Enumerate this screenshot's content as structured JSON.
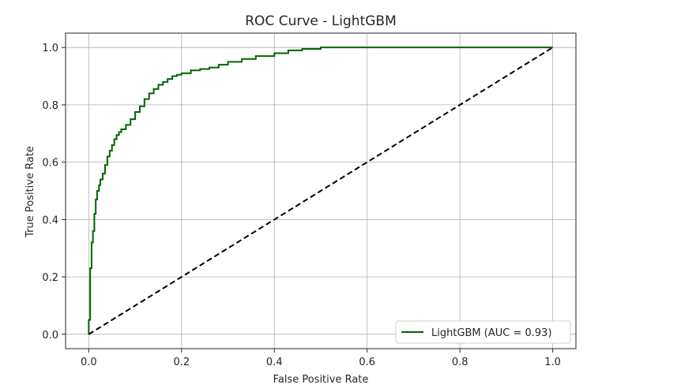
{
  "chart_data": {
    "type": "line",
    "title": "ROC Curve - LightGBM",
    "xlabel": "False Positive Rate",
    "ylabel": "True Positive Rate",
    "xlim": [
      -0.05,
      1.05
    ],
    "ylim": [
      -0.05,
      1.05
    ],
    "xticks": [
      0.0,
      0.2,
      0.4,
      0.6,
      0.8,
      1.0
    ],
    "yticks": [
      0.0,
      0.2,
      0.4,
      0.6,
      0.8,
      1.0
    ],
    "xtick_labels": [
      "0.0",
      "0.2",
      "0.4",
      "0.6",
      "0.8",
      "1.0"
    ],
    "ytick_labels": [
      "0.0",
      "0.2",
      "0.4",
      "0.6",
      "0.8",
      "1.0"
    ],
    "grid": true,
    "legend_position": "lower-right",
    "series": [
      {
        "name": "LightGBM (AUC = 0.93)",
        "color": "#006400",
        "style": "solid",
        "x": [
          0.0,
          0.0,
          0.003,
          0.003,
          0.006,
          0.006,
          0.009,
          0.012,
          0.015,
          0.018,
          0.022,
          0.025,
          0.03,
          0.035,
          0.04,
          0.045,
          0.05,
          0.055,
          0.06,
          0.065,
          0.07,
          0.08,
          0.09,
          0.1,
          0.11,
          0.12,
          0.13,
          0.14,
          0.15,
          0.16,
          0.17,
          0.18,
          0.19,
          0.2,
          0.22,
          0.24,
          0.26,
          0.28,
          0.3,
          0.33,
          0.36,
          0.4,
          0.43,
          0.46,
          0.5,
          0.6,
          0.7,
          0.8,
          0.9,
          1.0
        ],
        "y": [
          0.0,
          0.05,
          0.1,
          0.23,
          0.28,
          0.32,
          0.36,
          0.42,
          0.47,
          0.5,
          0.52,
          0.54,
          0.56,
          0.59,
          0.62,
          0.64,
          0.66,
          0.68,
          0.695,
          0.705,
          0.715,
          0.73,
          0.75,
          0.775,
          0.795,
          0.82,
          0.84,
          0.855,
          0.87,
          0.88,
          0.89,
          0.9,
          0.905,
          0.91,
          0.92,
          0.925,
          0.93,
          0.94,
          0.95,
          0.96,
          0.97,
          0.98,
          0.99,
          0.995,
          1.0,
          1.0,
          1.0,
          1.0,
          1.0,
          1.0
        ]
      },
      {
        "name": "",
        "color": "#000000",
        "style": "dashed",
        "x": [
          0.0,
          1.0
        ],
        "y": [
          0.0,
          1.0
        ]
      }
    ]
  }
}
